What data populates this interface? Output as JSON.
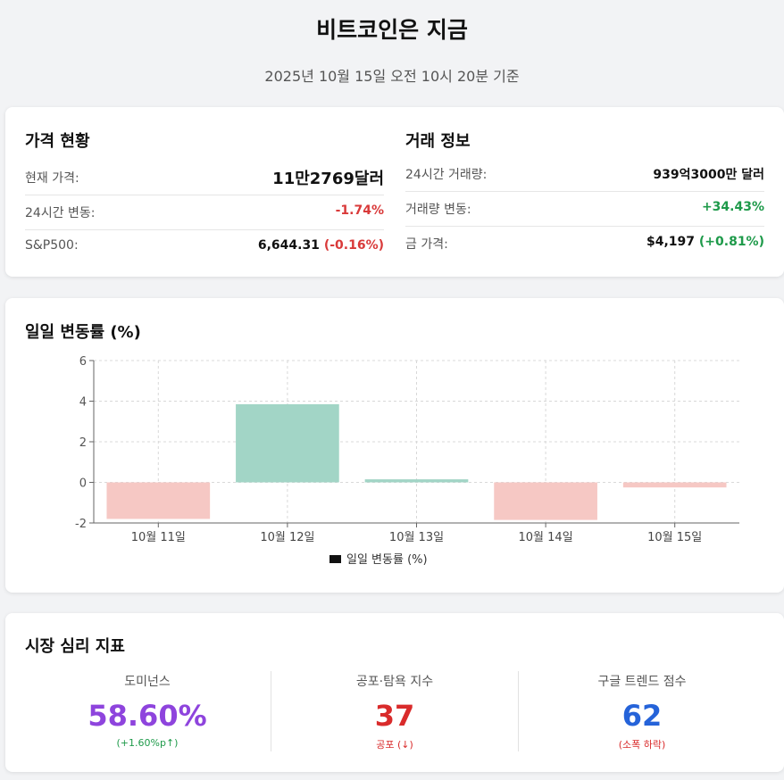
{
  "header": {
    "title": "비트코인은 지금",
    "subtitle": "2025년 10월 15일 오전 10시 20분 기준"
  },
  "price_status": {
    "title": "가격 현황",
    "rows": [
      {
        "label": "현재 가격:",
        "value": "11만2769달러"
      },
      {
        "label": "24시간 변동:",
        "value": "-1.74%"
      },
      {
        "label": "S&P500:",
        "value": "6,644.31",
        "change": "(-0.16%)"
      }
    ]
  },
  "trade_info": {
    "title": "거래 정보",
    "rows": [
      {
        "label": "24시간 거래량:",
        "value": "939억3000만 달러"
      },
      {
        "label": "거래량 변동:",
        "value": "+34.43%"
      },
      {
        "label": "금 가격:",
        "value": "$4,197",
        "change": "(+0.81%)"
      }
    ]
  },
  "chart_section": {
    "title": "일일 변동률 (%)"
  },
  "chart_data": {
    "type": "bar",
    "categories": [
      "10월 11일",
      "10월 12일",
      "10월 13일",
      "10월 14일",
      "10월 15일"
    ],
    "series": [
      {
        "name": "일일 변동률 (%)",
        "values": [
          -1.8,
          3.85,
          0.15,
          -1.85,
          -0.25
        ]
      }
    ],
    "ylim": [
      -2,
      6
    ],
    "yticks": [
      -2,
      0,
      2,
      4,
      6
    ],
    "grid": true,
    "legend": "bottom",
    "colors": {
      "positive": "#a2d5c6",
      "negative": "#f6c8c4"
    }
  },
  "sentiment": {
    "title": "시장 심리 지표",
    "metrics": [
      {
        "label": "도미넌스",
        "value": "58.60%",
        "sub": "(+1.60%p↑)",
        "color": "#8e44dd",
        "sub_color": "#1e9a4a"
      },
      {
        "label": "공포·탐욕 지수",
        "value": "37",
        "sub": "공포 (↓)",
        "color": "#d92b2b",
        "sub_color": "#d92b2b"
      },
      {
        "label": "구글 트렌드 점수",
        "value": "62",
        "sub": "(소폭 하락)",
        "color": "#2563d9",
        "sub_color": "#d92b2b"
      }
    ]
  }
}
